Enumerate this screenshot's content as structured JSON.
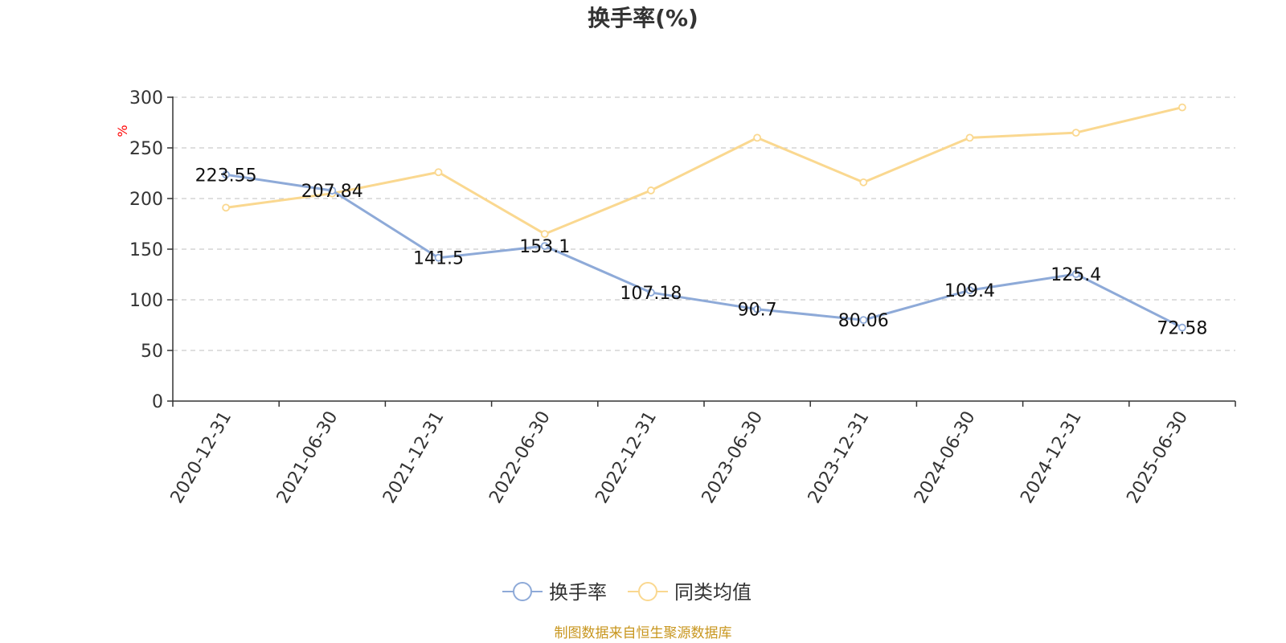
{
  "chart_data": {
    "type": "line",
    "title": "换手率(%)",
    "y_unit": "%",
    "x": [
      "2020-12-31",
      "2021-06-30",
      "2021-12-31",
      "2022-06-30",
      "2022-12-31",
      "2023-06-30",
      "2023-12-31",
      "2024-06-30",
      "2024-12-31",
      "2025-06-30"
    ],
    "ylim": [
      0,
      300
    ],
    "yticks": [
      0,
      50,
      100,
      150,
      200,
      250,
      300
    ],
    "grid": "horizontal-dashed",
    "legend_position": "bottom-center",
    "series": [
      {
        "name": "换手率",
        "color": "#8eaad8",
        "values": [
          223.55,
          207.84,
          141.5,
          153.1,
          107.18,
          90.7,
          80.06,
          109.4,
          125.4,
          72.58
        ],
        "labels": [
          "223.55",
          "207.84",
          "141.5",
          "153.1",
          "107.18",
          "90.7",
          "80.06",
          "109.4",
          "125.4",
          "72.58"
        ]
      },
      {
        "name": "同类均值",
        "color": "#fad890",
        "values": [
          191,
          205,
          226,
          165,
          208,
          260,
          216,
          260,
          265,
          290
        ]
      }
    ]
  },
  "source_text": "制图数据来自恒生聚源数据库"
}
